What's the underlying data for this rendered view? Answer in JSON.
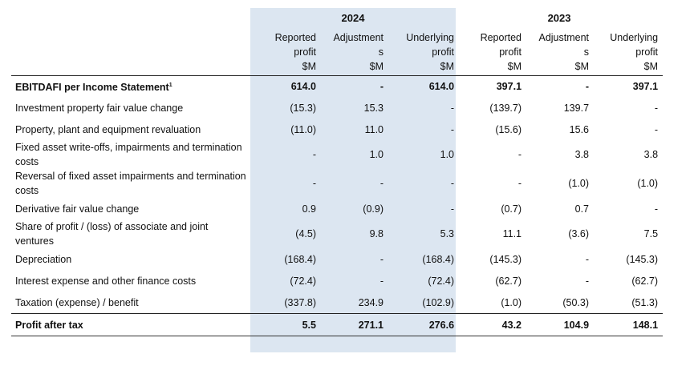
{
  "header": {
    "year_2024": "2024",
    "year_2023": "2023",
    "columns": [
      {
        "line1": "Reported",
        "line2": "profit",
        "line3": "$M"
      },
      {
        "line1": "Adjustment",
        "line2": "s",
        "line3": "$M"
      },
      {
        "line1": "Underlying",
        "line2": "profit",
        "line3": "$M"
      },
      {
        "line1": "Reported",
        "line2": "profit",
        "line3": "$M"
      },
      {
        "line1": "Adjustment",
        "line2": "s",
        "line3": "$M"
      },
      {
        "line1": "Underlying",
        "line2": "profit",
        "line3": "$M"
      }
    ]
  },
  "rows": [
    {
      "label": "EBITDAFI per Income Statement",
      "sup": "1",
      "values": [
        "614.0",
        "-",
        "614.0",
        "397.1",
        "-",
        "397.1"
      ]
    },
    {
      "label": "Investment property fair value change",
      "values": [
        "(15.3)",
        "15.3",
        "-",
        "(139.7)",
        "139.7",
        "-"
      ]
    },
    {
      "label": "Property, plant and equipment revaluation",
      "values": [
        "(11.0)",
        "11.0",
        "-",
        "(15.6)",
        "15.6",
        "-"
      ]
    },
    {
      "label": "Fixed asset write-offs, impairments and termination costs",
      "values": [
        "-",
        "1.0",
        "1.0",
        "-",
        "3.8",
        "3.8"
      ]
    },
    {
      "label": "Reversal of fixed asset impairments and termination costs",
      "values": [
        "-",
        "-",
        "-",
        "-",
        "(1.0)",
        "(1.0)"
      ]
    },
    {
      "label": "Derivative fair value change",
      "values": [
        "0.9",
        "(0.9)",
        "-",
        "(0.7)",
        "0.7",
        "-"
      ]
    },
    {
      "label": "Share of profit / (loss) of associate and joint ventures",
      "values": [
        "(4.5)",
        "9.8",
        "5.3",
        "11.1",
        "(3.6)",
        "7.5"
      ]
    },
    {
      "label": "Depreciation",
      "values": [
        "(168.4)",
        "-",
        "(168.4)",
        "(145.3)",
        "-",
        "(145.3)"
      ]
    },
    {
      "label": "Interest expense and other finance costs",
      "values": [
        "(72.4)",
        "-",
        "(72.4)",
        "(62.7)",
        "-",
        "(62.7)"
      ]
    },
    {
      "label": "Taxation (expense) / benefit",
      "values": [
        "(337.8)",
        "234.9",
        "(102.9)",
        "(1.0)",
        "(50.3)",
        "(51.3)"
      ]
    },
    {
      "label": "Profit after tax",
      "values": [
        "5.5",
        "271.1",
        "276.6",
        "43.2",
        "104.9",
        "148.1"
      ]
    }
  ]
}
